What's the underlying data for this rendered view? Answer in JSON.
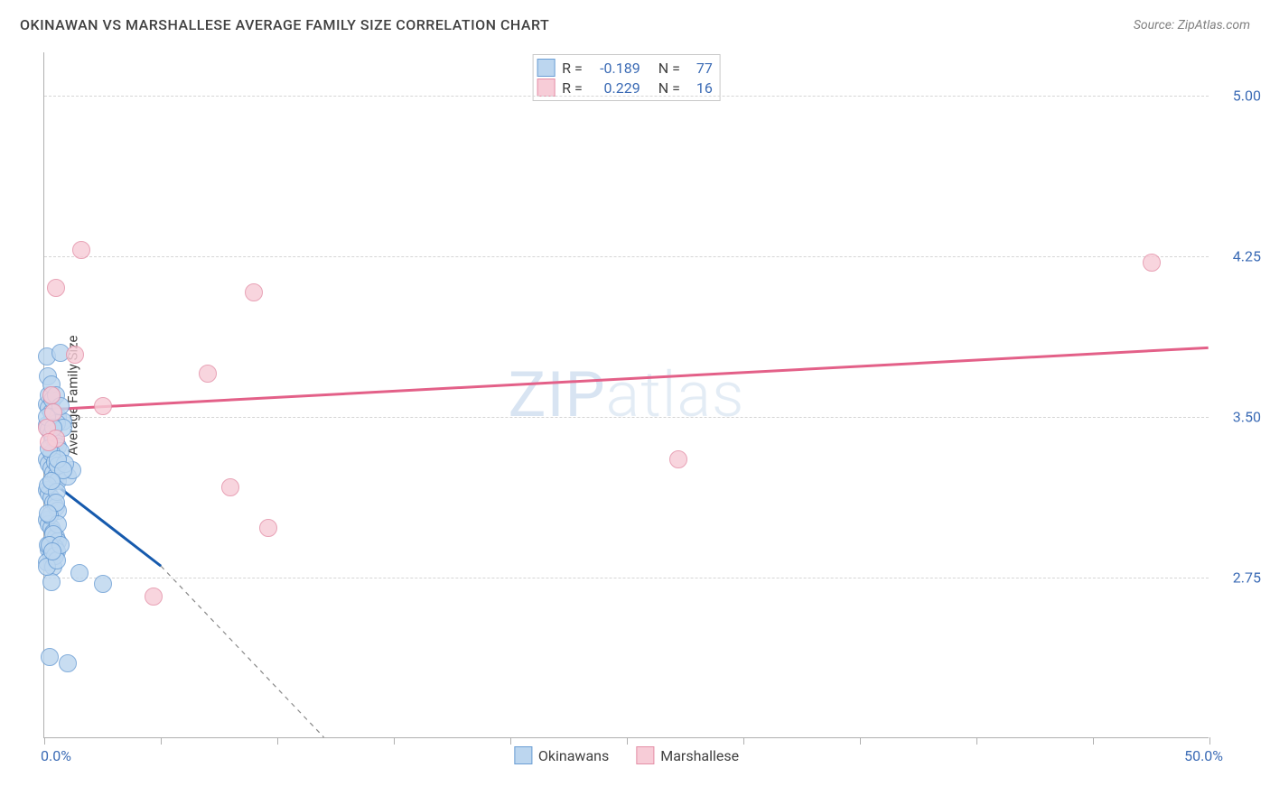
{
  "title": "OKINAWAN VS MARSHALLESE AVERAGE FAMILY SIZE CORRELATION CHART",
  "source": "Source: ZipAtlas.com",
  "watermark": {
    "a": "ZIP",
    "b": "atlas"
  },
  "y_axis_title": "Average Family Size",
  "x_axis": {
    "min": 0.0,
    "max": 50.0,
    "ticks": [
      0.0,
      5.0,
      10.0,
      15.0,
      20.0,
      25.0,
      30.0,
      35.0,
      40.0,
      45.0,
      50.0
    ],
    "label_min": "0.0%",
    "label_max": "50.0%"
  },
  "y_axis": {
    "min": 2.0,
    "max": 5.2,
    "gridlines": [
      2.75,
      3.5,
      4.25,
      5.0
    ],
    "labels": [
      "2.75",
      "3.50",
      "4.25",
      "5.00"
    ]
  },
  "series": [
    {
      "name": "Okinawans",
      "fill": "#bcd6ef",
      "stroke": "#6a9dd4",
      "line_color": "#165aad",
      "r_label": "R =",
      "r_value": "-0.189",
      "n_label": "N =",
      "n_value": "77",
      "trend": {
        "x1": 0.0,
        "y1": 3.22,
        "x2": 5.0,
        "y2": 2.8,
        "dash_to_x": 12.0,
        "dash_to_y": 2.0
      },
      "marker_radius": 10,
      "points": [
        [
          0.1,
          3.78
        ],
        [
          0.7,
          3.8
        ],
        [
          0.15,
          3.69
        ],
        [
          0.1,
          3.56
        ],
        [
          0.2,
          3.54
        ],
        [
          0.3,
          3.52
        ],
        [
          0.6,
          3.5
        ],
        [
          0.8,
          3.48
        ],
        [
          0.1,
          3.46
        ],
        [
          0.2,
          3.44
        ],
        [
          0.3,
          3.42
        ],
        [
          0.4,
          3.4
        ],
        [
          0.5,
          3.38
        ],
        [
          0.6,
          3.36
        ],
        [
          0.7,
          3.34
        ],
        [
          0.1,
          3.3
        ],
        [
          0.2,
          3.28
        ],
        [
          0.3,
          3.26
        ],
        [
          0.4,
          3.24
        ],
        [
          0.5,
          3.22
        ],
        [
          0.6,
          3.2
        ],
        [
          1.0,
          3.22
        ],
        [
          1.2,
          3.25
        ],
        [
          0.1,
          3.16
        ],
        [
          0.2,
          3.14
        ],
        [
          0.3,
          3.12
        ],
        [
          0.4,
          3.1
        ],
        [
          0.5,
          3.08
        ],
        [
          0.6,
          3.06
        ],
        [
          0.1,
          3.02
        ],
        [
          0.2,
          3.0
        ],
        [
          0.3,
          2.98
        ],
        [
          0.4,
          2.96
        ],
        [
          0.5,
          2.94
        ],
        [
          0.6,
          2.92
        ],
        [
          0.2,
          2.88
        ],
        [
          0.3,
          2.85
        ],
        [
          0.1,
          2.82
        ],
        [
          0.4,
          2.8
        ],
        [
          1.5,
          2.77
        ],
        [
          0.3,
          2.73
        ],
        [
          2.5,
          2.72
        ],
        [
          0.25,
          2.38
        ],
        [
          1.0,
          2.35
        ],
        [
          0.2,
          3.6
        ],
        [
          0.35,
          3.58
        ],
        [
          0.55,
          3.47
        ],
        [
          0.8,
          3.45
        ],
        [
          0.3,
          3.33
        ],
        [
          0.45,
          3.29
        ],
        [
          0.6,
          3.27
        ],
        [
          0.9,
          3.28
        ],
        [
          0.15,
          3.18
        ],
        [
          0.55,
          3.15
        ],
        [
          0.25,
          3.04
        ],
        [
          0.6,
          3.0
        ],
        [
          0.15,
          2.9
        ],
        [
          0.45,
          2.89
        ],
        [
          0.55,
          2.87
        ],
        [
          0.3,
          3.65
        ],
        [
          0.5,
          3.6
        ],
        [
          0.7,
          3.55
        ],
        [
          0.1,
          3.5
        ],
        [
          0.4,
          3.45
        ],
        [
          0.2,
          3.35
        ],
        [
          0.6,
          3.3
        ],
        [
          0.8,
          3.25
        ],
        [
          0.3,
          3.2
        ],
        [
          0.5,
          3.1
        ],
        [
          0.15,
          3.05
        ],
        [
          0.4,
          2.95
        ],
        [
          0.25,
          2.9
        ],
        [
          0.45,
          2.85
        ],
        [
          0.1,
          2.8
        ],
        [
          0.55,
          2.83
        ],
        [
          0.7,
          2.9
        ],
        [
          0.35,
          2.87
        ]
      ]
    },
    {
      "name": "Marshallese",
      "fill": "#f7ccd7",
      "stroke": "#e48fa7",
      "line_color": "#e36088",
      "r_label": "R =",
      "r_value": "0.229",
      "n_label": "N =",
      "n_value": "16",
      "trend": {
        "x1": 0.0,
        "y1": 3.53,
        "x2": 50.0,
        "y2": 3.82
      },
      "marker_radius": 10,
      "points": [
        [
          1.6,
          4.28
        ],
        [
          0.5,
          4.1
        ],
        [
          7.0,
          3.7
        ],
        [
          9.0,
          4.08
        ],
        [
          1.3,
          3.79
        ],
        [
          0.3,
          3.6
        ],
        [
          2.5,
          3.55
        ],
        [
          8.0,
          3.17
        ],
        [
          4.7,
          2.66
        ],
        [
          9.6,
          2.98
        ],
        [
          27.2,
          3.3
        ],
        [
          47.5,
          4.22
        ],
        [
          0.1,
          3.45
        ],
        [
          0.5,
          3.4
        ],
        [
          0.2,
          3.38
        ],
        [
          0.4,
          3.52
        ]
      ]
    }
  ],
  "legend_bottom": [
    {
      "label": "Okinawans",
      "fill": "#bcd6ef",
      "stroke": "#6a9dd4"
    },
    {
      "label": "Marshallese",
      "fill": "#f7ccd7",
      "stroke": "#e48fa7"
    }
  ],
  "colors": {
    "title_text": "#404040",
    "source_text": "#808080",
    "axis": "#b0b0b0",
    "grid": "#d5d5d5",
    "tick_label": "#3b6bb5"
  }
}
